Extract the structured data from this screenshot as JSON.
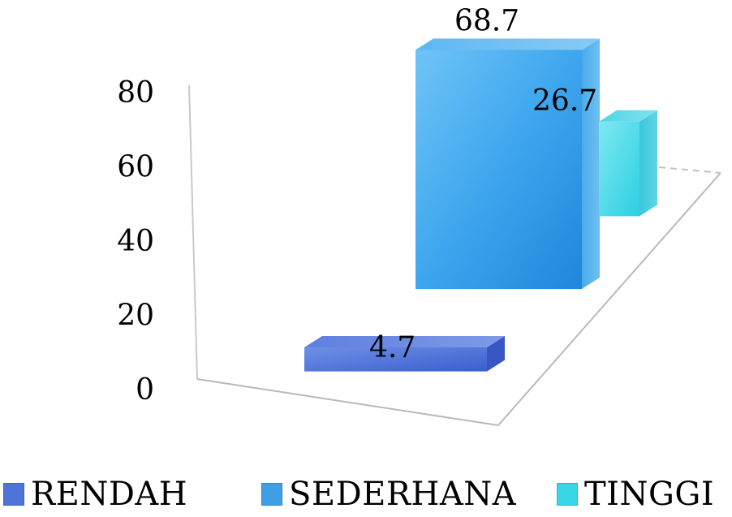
{
  "chart_data": {
    "type": "bar",
    "categories": [
      "RENDAH",
      "SEDERHANA",
      "TINGGI"
    ],
    "values": [
      4.7,
      68.7,
      26.7
    ],
    "data_labels": [
      "4.7",
      "68.7",
      "26.7"
    ],
    "title": "",
    "xlabel": "",
    "ylabel": "",
    "ylim": [
      0,
      80
    ],
    "yticks": [
      0,
      20,
      40,
      60,
      80
    ],
    "ytick_labels": [
      "0",
      "20",
      "40",
      "60",
      "80"
    ],
    "three_d": true,
    "grid": false,
    "legend_position": "bottom",
    "colors": [
      "#4f74d8",
      "#3c9fe8",
      "#38d6e6"
    ]
  },
  "legend": {
    "items": [
      {
        "label": "RENDAH",
        "color": "#4f74d8"
      },
      {
        "label": "SEDERHANA",
        "color": "#3c9fe8"
      },
      {
        "label": "TINGGI",
        "color": "#38d6e6"
      }
    ]
  }
}
